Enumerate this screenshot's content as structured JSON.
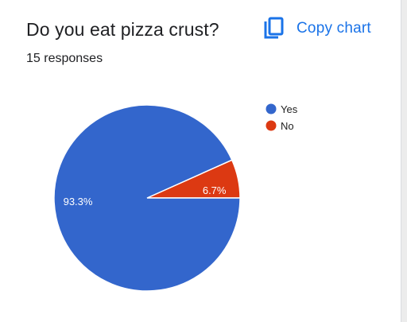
{
  "card": {
    "title": "Do you eat pizza crust?",
    "responses": "15 responses",
    "copy_label": "Copy chart",
    "copy_icon": "copy-icon",
    "accent_color": "#1a73e8"
  },
  "chart_data": {
    "type": "pie",
    "categories": [
      "Yes",
      "No"
    ],
    "values": [
      93.3,
      6.7
    ],
    "labels": [
      "93.3%",
      "6.7%"
    ],
    "colors": [
      "#3366cc",
      "#dc3912"
    ],
    "legend_position": "top-right"
  }
}
